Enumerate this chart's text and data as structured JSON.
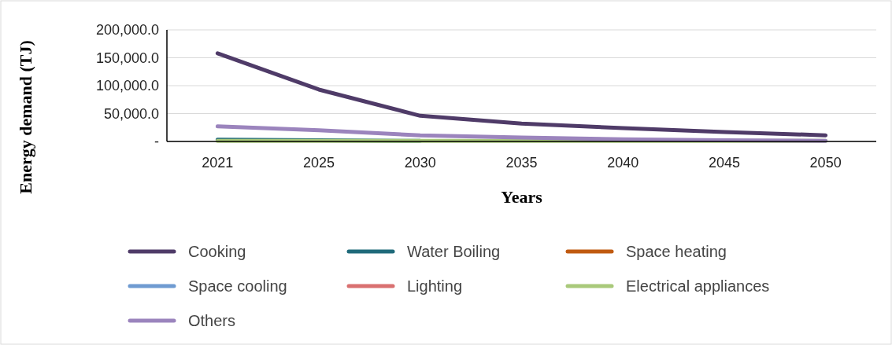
{
  "chart_data": {
    "type": "line",
    "xlabel": "Years",
    "ylabel": "Energy demand (TJ)",
    "categories": [
      "2021",
      "2025",
      "2030",
      "2035",
      "2040",
      "2045",
      "2050"
    ],
    "series": [
      {
        "name": "Cooking",
        "color": "#4f3b68",
        "values": [
          158000,
          93000,
          46000,
          32000,
          24000,
          17000,
          11000
        ]
      },
      {
        "name": "Water Boiling",
        "color": "#1f6a7a",
        "values": [
          3000,
          2000,
          1000,
          null,
          null,
          null,
          null
        ]
      },
      {
        "name": "Space heating",
        "color": "#c05a10",
        "values": [
          null,
          null,
          null,
          null,
          null,
          null,
          null
        ]
      },
      {
        "name": "Space cooling",
        "color": "#6f9bd1",
        "values": [
          null,
          null,
          null,
          null,
          null,
          null,
          null
        ]
      },
      {
        "name": "Lighting",
        "color": "#d97070",
        "values": [
          null,
          null,
          null,
          null,
          null,
          null,
          null
        ]
      },
      {
        "name": "Electrical appliances",
        "color": "#a9c97a",
        "values": [
          1000,
          1000,
          1000,
          1000,
          1000,
          1000,
          1000
        ]
      },
      {
        "name": "Others",
        "color": "#9b84bd",
        "values": [
          27000,
          20000,
          11000,
          7000,
          4000,
          2000,
          1000
        ]
      }
    ],
    "ylim": [
      0,
      200000
    ],
    "yticks": [
      {
        "value": 0,
        "label": "-"
      },
      {
        "value": 50000,
        "label": "50,000.0"
      },
      {
        "value": 100000,
        "label": "100,000.0"
      },
      {
        "value": 150000,
        "label": "150,000.0"
      },
      {
        "value": 200000,
        "label": "200,000.0"
      }
    ],
    "grid": "y",
    "legend": "bottom",
    "marker": "none",
    "line_style": "solid"
  }
}
